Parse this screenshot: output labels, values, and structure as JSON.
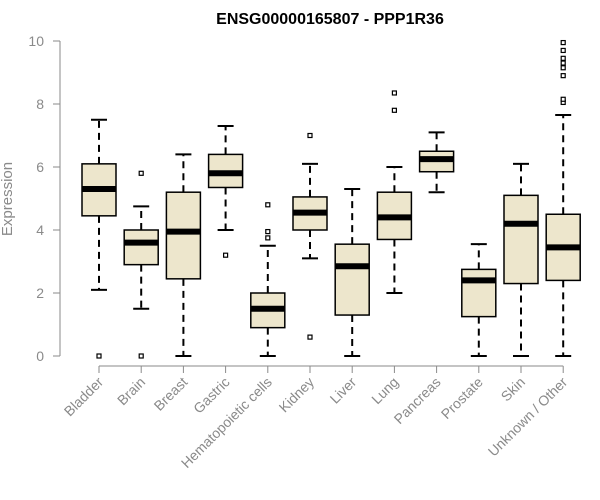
{
  "chart_data": {
    "type": "boxplot",
    "title": "ENSG00000165807 - PPP1R36",
    "xlabel": "",
    "ylabel": "Expression",
    "ylim": [
      0,
      10
    ],
    "yticks": [
      "0",
      "2",
      "4",
      "6",
      "8",
      "10"
    ],
    "box_fill": "#ede6cc",
    "line_color": "#000000",
    "categories": [
      "Bladder",
      "Brain",
      "Breast",
      "Gastric",
      "Hematopoietic cells",
      "Kidney",
      "Liver",
      "Lung",
      "Pancreas",
      "Prostate",
      "Skin",
      "Unknown / Other"
    ],
    "boxes": [
      {
        "name": "Bladder",
        "whisker_low": 2.1,
        "q1": 4.45,
        "median": 5.3,
        "q3": 6.1,
        "whisker_high": 7.5,
        "outliers": [
          0
        ]
      },
      {
        "name": "Brain",
        "whisker_low": 1.5,
        "q1": 2.9,
        "median": 3.6,
        "q3": 4.0,
        "whisker_high": 4.75,
        "outliers": [
          0,
          5.8
        ]
      },
      {
        "name": "Breast",
        "whisker_low": 0,
        "q1": 2.45,
        "median": 3.95,
        "q3": 5.2,
        "whisker_high": 6.4,
        "outliers": []
      },
      {
        "name": "Gastric",
        "whisker_low": 4.0,
        "q1": 5.35,
        "median": 5.8,
        "q3": 6.4,
        "whisker_high": 7.3,
        "outliers": [
          3.2
        ]
      },
      {
        "name": "Hematopoietic cells",
        "whisker_low": 0,
        "q1": 0.9,
        "median": 1.5,
        "q3": 2.0,
        "whisker_high": 3.5,
        "outliers": [
          3.75,
          3.95,
          4.8
        ]
      },
      {
        "name": "Kidney",
        "whisker_low": 3.1,
        "q1": 4.0,
        "median": 4.55,
        "q3": 5.05,
        "whisker_high": 6.1,
        "outliers": [
          0.6,
          7.0
        ]
      },
      {
        "name": "Liver",
        "whisker_low": 0,
        "q1": 1.3,
        "median": 2.85,
        "q3": 3.55,
        "whisker_high": 5.3,
        "outliers": []
      },
      {
        "name": "Lung",
        "whisker_low": 2.0,
        "q1": 3.7,
        "median": 4.4,
        "q3": 5.2,
        "whisker_high": 6.0,
        "outliers": [
          7.8,
          8.35
        ]
      },
      {
        "name": "Pancreas",
        "whisker_low": 5.2,
        "q1": 5.85,
        "median": 6.25,
        "q3": 6.5,
        "whisker_high": 7.1,
        "outliers": []
      },
      {
        "name": "Prostate",
        "whisker_low": 0,
        "q1": 1.25,
        "median": 2.4,
        "q3": 2.75,
        "whisker_high": 3.55,
        "outliers": []
      },
      {
        "name": "Skin",
        "whisker_low": 0,
        "q1": 2.3,
        "median": 4.2,
        "q3": 5.1,
        "whisker_high": 6.1,
        "outliers": []
      },
      {
        "name": "Unknown / Other",
        "whisker_low": 0,
        "q1": 2.4,
        "median": 3.45,
        "q3": 4.5,
        "whisker_high": 7.65,
        "outliers": [
          8.05,
          8.15,
          8.9,
          9.15,
          9.3,
          9.45,
          9.7,
          9.95
        ]
      }
    ]
  }
}
